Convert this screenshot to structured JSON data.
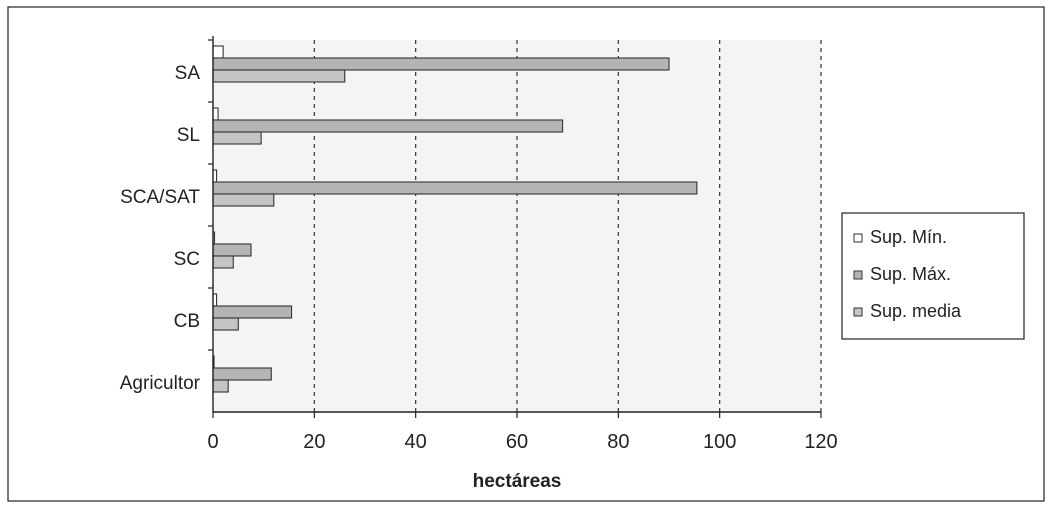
{
  "chart_data": {
    "type": "bar",
    "orientation": "horizontal",
    "categories": [
      "SA",
      "SL",
      "SCA/SAT",
      "SC",
      "CB",
      "Agricultor"
    ],
    "series": [
      {
        "name": "Sup. Mín.",
        "values": [
          2,
          1,
          0.7,
          0.3,
          0.7,
          0.2
        ],
        "color": "#ffffff"
      },
      {
        "name": "Sup. Máx.",
        "values": [
          90,
          69,
          95.5,
          7.5,
          15.5,
          11.5
        ],
        "color": "#b4b4b4"
      },
      {
        "name": "Sup. media",
        "values": [
          26,
          9.5,
          12,
          4,
          5,
          3
        ],
        "color": "#c4c4c4"
      }
    ],
    "title": "",
    "xlabel": "hectáreas",
    "ylabel": "",
    "xlim": [
      0,
      120
    ],
    "xticks": [
      "0",
      "20",
      "40",
      "60",
      "80",
      "100",
      "120"
    ],
    "grid": "vertical dashed",
    "legend": "right"
  }
}
